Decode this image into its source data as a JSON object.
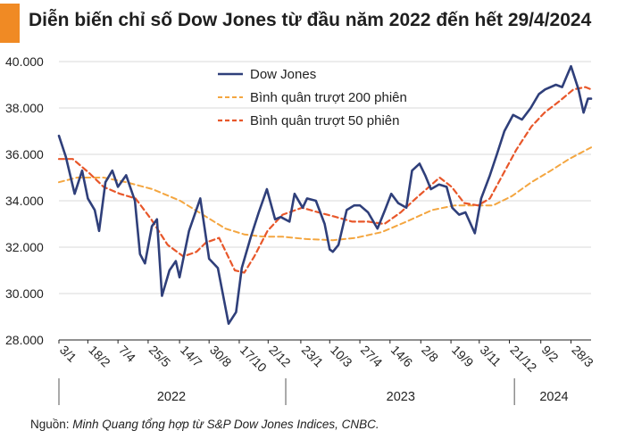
{
  "title": "Diễn biến chỉ số Dow Jones từ đầu năm 2022 đến hết 29/4/2024",
  "source": {
    "label": "Nguồn: ",
    "text": "Minh Quang tổng hợp từ S&P Dow Jones Indices, CNBC."
  },
  "colors": {
    "accent": "#f08a24",
    "dow": "#2f3f7a",
    "ma200": "#f4a640",
    "ma50": "#e8572a",
    "grid": "#d9d9d9"
  },
  "chart_data": {
    "type": "line",
    "x_tick_labels": [
      "3/1",
      "18/2",
      "7/4",
      "25/5",
      "14/7",
      "30/8",
      "17/10",
      "2/12",
      "23/1",
      "10/3",
      "27/4",
      "14/6",
      "2/8",
      "19/9",
      "3/11",
      "21/12",
      "9/2",
      "28/3"
    ],
    "year_labels": [
      "2022",
      "2023",
      "2024"
    ],
    "ylim": [
      28000,
      40000
    ],
    "y_tick_labels": [
      "28.000",
      "30.000",
      "32.000",
      "34.000",
      "36.000",
      "38.000",
      "40.000"
    ],
    "grid": "horizontal",
    "legend_position": "top-center",
    "series": [
      {
        "name": "Dow Jones",
        "style": "solid",
        "x": [
          "2022-01-03",
          "2022-01-14",
          "2022-01-28",
          "2022-02-09",
          "2022-02-18",
          "2022-03-01",
          "2022-03-08",
          "2022-03-18",
          "2022-03-29",
          "2022-04-07",
          "2022-04-20",
          "2022-05-04",
          "2022-05-12",
          "2022-05-20",
          "2022-05-31",
          "2022-06-08",
          "2022-06-16",
          "2022-06-28",
          "2022-07-08",
          "2022-07-14",
          "2022-07-29",
          "2022-08-16",
          "2022-08-30",
          "2022-09-13",
          "2022-09-30",
          "2022-10-12",
          "2022-10-21",
          "2022-11-04",
          "2022-11-17",
          "2022-11-30",
          "2022-12-13",
          "2022-12-22",
          "2023-01-05",
          "2023-01-13",
          "2023-01-26",
          "2023-02-02",
          "2023-02-16",
          "2023-03-02",
          "2023-03-10",
          "2023-03-15",
          "2023-03-24",
          "2023-04-06",
          "2023-04-18",
          "2023-04-27",
          "2023-05-10",
          "2023-05-25",
          "2023-06-06",
          "2023-06-16",
          "2023-06-27",
          "2023-07-10",
          "2023-07-19",
          "2023-07-31",
          "2023-08-09",
          "2023-08-18",
          "2023-08-31",
          "2023-09-12",
          "2023-09-21",
          "2023-10-02",
          "2023-10-12",
          "2023-10-27",
          "2023-11-06",
          "2023-11-20",
          "2023-12-01",
          "2023-12-13",
          "2023-12-27",
          "2024-01-10",
          "2024-01-24",
          "2024-02-06",
          "2024-02-16",
          "2024-03-04",
          "2024-03-14",
          "2024-03-28",
          "2024-04-09",
          "2024-04-17",
          "2024-04-24",
          "2024-04-29"
        ],
        "y": [
          36800,
          35900,
          34300,
          35300,
          34100,
          33600,
          32700,
          34800,
          35300,
          34600,
          35100,
          34000,
          31700,
          31300,
          32900,
          33200,
          29900,
          31000,
          31400,
          30700,
          32700,
          34100,
          31500,
          31100,
          28700,
          29200,
          31100,
          32400,
          33500,
          34500,
          33200,
          33300,
          33100,
          34300,
          33700,
          34100,
          34000,
          33000,
          31900,
          31800,
          32100,
          33600,
          33800,
          33800,
          33500,
          32800,
          33600,
          34300,
          33900,
          33700,
          35300,
          35600,
          35100,
          34500,
          34700,
          34600,
          33700,
          33400,
          33500,
          32600,
          34100,
          35100,
          36000,
          37000,
          37700,
          37500,
          38000,
          38600,
          38800,
          39000,
          38900,
          39800,
          38800,
          37800,
          38400,
          38400
        ]
      },
      {
        "name": "Bình quân trượt 200 phiên",
        "style": "dashed",
        "x": [
          "2022-01-03",
          "2022-02-01",
          "2022-03-15",
          "2022-04-20",
          "2022-06-01",
          "2022-07-15",
          "2022-08-20",
          "2022-09-25",
          "2022-10-25",
          "2022-11-25",
          "2022-12-25",
          "2023-02-01",
          "2023-03-15",
          "2023-04-20",
          "2023-06-01",
          "2023-07-10",
          "2023-08-20",
          "2023-09-25",
          "2023-10-25",
          "2023-11-25",
          "2023-12-25",
          "2024-01-25",
          "2024-02-25",
          "2024-03-25",
          "2024-04-29"
        ],
        "y": [
          34800,
          35000,
          35000,
          34800,
          34500,
          34000,
          33400,
          32800,
          32550,
          32450,
          32450,
          32350,
          32300,
          32400,
          32650,
          33100,
          33600,
          33800,
          33800,
          33800,
          34200,
          34800,
          35300,
          35800,
          36300
        ]
      },
      {
        "name": "Bình quân trượt 50 phiên",
        "style": "dashed",
        "x": [
          "2022-01-03",
          "2022-01-25",
          "2022-02-20",
          "2022-03-15",
          "2022-04-10",
          "2022-05-05",
          "2022-05-30",
          "2022-06-25",
          "2022-07-20",
          "2022-08-10",
          "2022-08-25",
          "2022-09-15",
          "2022-10-10",
          "2022-10-25",
          "2022-11-10",
          "2022-12-01",
          "2022-12-25",
          "2023-01-25",
          "2023-02-20",
          "2023-03-20",
          "2023-04-15",
          "2023-05-10",
          "2023-06-05",
          "2023-07-01",
          "2023-07-25",
          "2023-08-15",
          "2023-09-01",
          "2023-09-20",
          "2023-10-10",
          "2023-11-01",
          "2023-11-20",
          "2023-12-10",
          "2024-01-01",
          "2024-01-25",
          "2024-02-15",
          "2024-03-10",
          "2024-04-01",
          "2024-04-20",
          "2024-04-29"
        ],
        "y": [
          35800,
          35800,
          35200,
          34600,
          34300,
          34100,
          33200,
          32100,
          31600,
          31800,
          32200,
          32400,
          31000,
          30900,
          31600,
          32700,
          33400,
          33700,
          33500,
          33300,
          33100,
          33100,
          33000,
          33500,
          34100,
          34600,
          35000,
          34600,
          33900,
          33800,
          34100,
          35100,
          36200,
          37200,
          37800,
          38300,
          38800,
          38900,
          38800
        ]
      }
    ]
  }
}
